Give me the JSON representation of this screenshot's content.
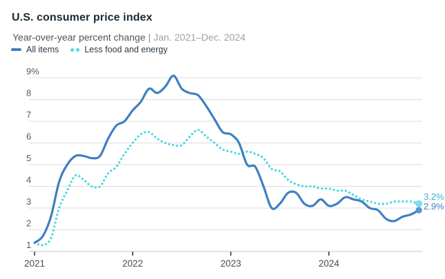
{
  "header": {
    "title": "U.S. consumer price index",
    "subtitle": "Year-over-year percent change",
    "subtitle_separator": "|",
    "subtitle_range": "Jan. 2021–Dec. 2024"
  },
  "legend": {
    "items": [
      {
        "label": "All items",
        "swatch": "line",
        "color": "#3f7fc1"
      },
      {
        "label": "Less food and energy",
        "swatch": "dots",
        "color": "#52d7e6"
      }
    ]
  },
  "chart_data": {
    "type": "line",
    "title": "U.S. consumer price index",
    "subtitle": "Year-over-year percent change",
    "date_range": "Jan. 2021–Dec. 2024",
    "x_unit": "month",
    "x_start": "2021-01",
    "x_end": "2024-12",
    "n_points": 48,
    "xticks": [
      "2021",
      "2022",
      "2023",
      "2024"
    ],
    "yticks": [
      "9%",
      "8",
      "7",
      "6",
      "5",
      "4",
      "3",
      "2",
      "1"
    ],
    "ytick_values": [
      9,
      8,
      7,
      6,
      5,
      4,
      3,
      2,
      1
    ],
    "ylim": [
      1,
      9.2
    ],
    "grid": "horizontal",
    "legend_position": "top-left",
    "series": [
      {
        "name": "All items",
        "style": "solid",
        "color": "#3f7fc1",
        "end_dot_color": "#5b94cc",
        "end_label": "2.9%",
        "end_label_color": "#3f7fc1",
        "values": [
          1.4,
          1.7,
          2.6,
          4.2,
          5.0,
          5.4,
          5.4,
          5.3,
          5.4,
          6.2,
          6.8,
          7.0,
          7.5,
          7.9,
          8.5,
          8.3,
          8.6,
          9.1,
          8.5,
          8.3,
          8.2,
          7.7,
          7.1,
          6.5,
          6.4,
          6.0,
          5.0,
          4.9,
          4.0,
          3.0,
          3.2,
          3.7,
          3.7,
          3.2,
          3.1,
          3.4,
          3.1,
          3.2,
          3.5,
          3.4,
          3.3,
          3.0,
          2.9,
          2.5,
          2.4,
          2.6,
          2.7,
          2.9
        ]
      },
      {
        "name": "Less food and energy",
        "style": "dotted",
        "color": "#52d7e6",
        "end_dot_color": "#7fdfec",
        "end_label": "3.2%",
        "end_label_color": "#36b6cb",
        "values": [
          1.4,
          1.3,
          1.6,
          3.0,
          3.8,
          4.5,
          4.3,
          4.0,
          4.0,
          4.6,
          4.9,
          5.5,
          6.0,
          6.4,
          6.5,
          6.2,
          6.0,
          5.9,
          5.9,
          6.3,
          6.6,
          6.3,
          6.0,
          5.7,
          5.6,
          5.5,
          5.6,
          5.5,
          5.3,
          4.8,
          4.7,
          4.3,
          4.1,
          4.0,
          4.0,
          3.9,
          3.9,
          3.8,
          3.8,
          3.6,
          3.4,
          3.3,
          3.2,
          3.2,
          3.3,
          3.3,
          3.3,
          3.2
        ]
      }
    ],
    "colors": {
      "gridline": "#dcdcdc",
      "axis_line": "#c2c4c6",
      "tick_mark": "#23282e",
      "y_label": "#565c63",
      "x_label": "#454c53"
    }
  }
}
